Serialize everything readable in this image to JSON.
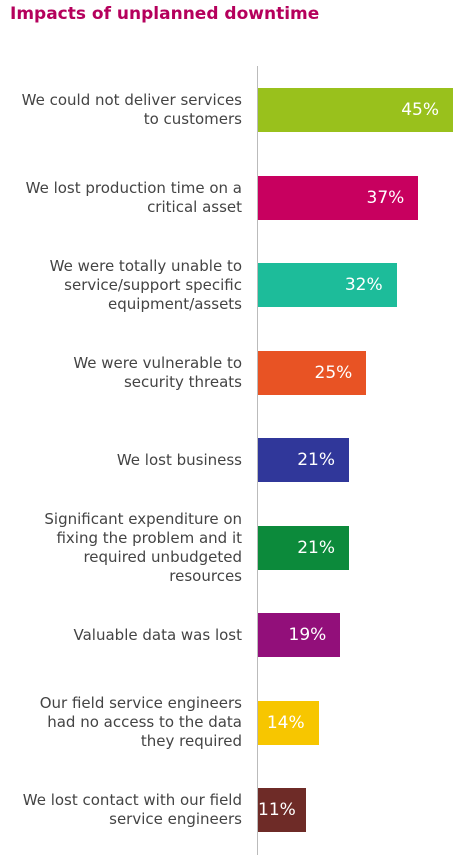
{
  "chart_data": {
    "type": "bar",
    "orientation": "horizontal",
    "title": "Impacts of unplanned downtime",
    "categories": [
      "We could not deliver services to customers",
      "We lost production time on a critical asset",
      "We were totally unable to service/support specific equipment/assets",
      "We were vulnerable to security threats",
      "We lost business",
      "Significant expenditure on fixing the problem and it required unbudgeted resources",
      "Valuable data was lost",
      "Our field service engineers had no access to the data they required",
      "We lost contact with our field service engineers"
    ],
    "values": [
      45,
      37,
      32,
      25,
      21,
      21,
      19,
      14,
      11
    ],
    "value_labels": [
      "45%",
      "37%",
      "32%",
      "25%",
      "21%",
      "21%",
      "19%",
      "14%",
      "11%"
    ],
    "colors": [
      "#99c11c",
      "#c8005f",
      "#1dbc9a",
      "#e85324",
      "#30379a",
      "#0c8a3b",
      "#920f7a",
      "#f7c600",
      "#6e2b27"
    ],
    "xlim": [
      0,
      45
    ]
  }
}
